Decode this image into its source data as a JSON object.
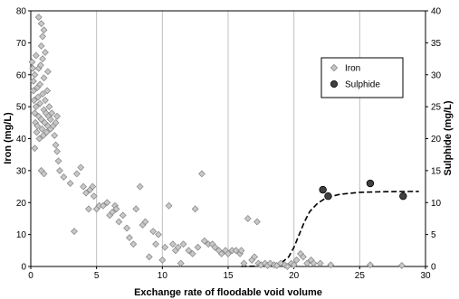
{
  "chart_data": {
    "type": "scatter",
    "title": "",
    "xlabel": "Exchange rate of floodable void volume",
    "ylabel": "Iron  (mg/L)",
    "y2label": "Sulphide (mg/L)",
    "xlim": [
      0,
      30
    ],
    "ylim": [
      0,
      80
    ],
    "y2lim": [
      0,
      40
    ],
    "x_ticks": [
      0,
      5,
      10,
      15,
      20,
      25,
      30
    ],
    "y_ticks": [
      0,
      10,
      20,
      30,
      40,
      50,
      60,
      70,
      80
    ],
    "y2_ticks": [
      0,
      5,
      10,
      15,
      20,
      25,
      30,
      35,
      40
    ],
    "grid": "vertical",
    "legend_position": "top-right",
    "series": [
      {
        "name": "Iron",
        "axis": "left",
        "marker": "diamond",
        "color": "#c8c8c8",
        "points": [
          [
            0.1,
            64
          ],
          [
            0.15,
            62
          ],
          [
            0.2,
            58
          ],
          [
            0.2,
            55
          ],
          [
            0.25,
            52
          ],
          [
            0.3,
            60
          ],
          [
            0.3,
            48
          ],
          [
            0.35,
            45
          ],
          [
            0.4,
            50
          ],
          [
            0.4,
            66
          ],
          [
            0.45,
            42
          ],
          [
            0.5,
            56
          ],
          [
            0.5,
            44
          ],
          [
            0.55,
            53
          ],
          [
            0.6,
            47
          ],
          [
            0.6,
            62
          ],
          [
            0.65,
            40
          ],
          [
            0.7,
            51
          ],
          [
            0.7,
            57
          ],
          [
            0.75,
            63
          ],
          [
            0.8,
            46
          ],
          [
            0.8,
            69
          ],
          [
            0.85,
            43
          ],
          [
            0.9,
            54
          ],
          [
            0.9,
            65
          ],
          [
            0.95,
            41
          ],
          [
            1.0,
            49
          ],
          [
            1.0,
            59
          ],
          [
            1.05,
            45
          ],
          [
            1.1,
            52
          ],
          [
            1.1,
            67
          ],
          [
            1.15,
            48
          ],
          [
            1.2,
            42
          ],
          [
            1.25,
            55
          ],
          [
            1.3,
            44
          ],
          [
            1.3,
            61
          ],
          [
            1.35,
            47
          ],
          [
            1.4,
            50
          ],
          [
            1.5,
            43
          ],
          [
            1.5,
            46
          ],
          [
            1.6,
            48
          ],
          [
            1.7,
            44
          ],
          [
            1.8,
            41
          ],
          [
            1.9,
            45
          ],
          [
            2.0,
            47
          ],
          [
            0.6,
            78
          ],
          [
            0.8,
            76
          ],
          [
            1.0,
            74
          ],
          [
            0.9,
            72
          ],
          [
            0.8,
            30
          ],
          [
            1.0,
            29
          ],
          [
            0.3,
            37
          ],
          [
            1.9,
            38
          ],
          [
            2.0,
            36
          ],
          [
            2.1,
            33
          ],
          [
            2.2,
            30
          ],
          [
            2.5,
            28
          ],
          [
            3.0,
            26
          ],
          [
            3.3,
            11
          ],
          [
            3.5,
            29
          ],
          [
            3.8,
            31
          ],
          [
            4.0,
            25
          ],
          [
            4.2,
            23
          ],
          [
            4.4,
            18
          ],
          [
            4.5,
            24
          ],
          [
            4.7,
            25
          ],
          [
            4.8,
            22
          ],
          [
            5.0,
            18
          ],
          [
            5.2,
            19
          ],
          [
            5.5,
            19
          ],
          [
            5.8,
            20
          ],
          [
            6.0,
            16
          ],
          [
            6.2,
            17
          ],
          [
            6.4,
            19
          ],
          [
            6.5,
            18
          ],
          [
            6.7,
            14
          ],
          [
            7.0,
            16
          ],
          [
            7.3,
            12
          ],
          [
            7.5,
            9
          ],
          [
            7.8,
            7
          ],
          [
            8.0,
            18
          ],
          [
            8.3,
            25
          ],
          [
            8.5,
            13
          ],
          [
            8.7,
            14
          ],
          [
            9.0,
            3
          ],
          [
            9.3,
            11
          ],
          [
            9.5,
            7
          ],
          [
            9.7,
            10
          ],
          [
            10.0,
            2
          ],
          [
            10.2,
            6
          ],
          [
            10.5,
            19
          ],
          [
            10.8,
            7
          ],
          [
            11.0,
            5
          ],
          [
            11.2,
            6
          ],
          [
            11.4,
            1
          ],
          [
            11.6,
            7
          ],
          [
            12.0,
            5
          ],
          [
            12.3,
            4
          ],
          [
            12.5,
            18
          ],
          [
            12.7,
            6
          ],
          [
            13.0,
            29
          ],
          [
            13.2,
            8
          ],
          [
            13.5,
            7
          ],
          [
            13.8,
            7
          ],
          [
            14.0,
            6
          ],
          [
            14.3,
            5
          ],
          [
            14.5,
            4
          ],
          [
            14.8,
            5
          ],
          [
            15.0,
            4
          ],
          [
            15.3,
            5
          ],
          [
            15.6,
            5
          ],
          [
            15.9,
            4
          ],
          [
            16.0,
            5
          ],
          [
            16.2,
            1
          ],
          [
            16.5,
            15
          ],
          [
            16.8,
            2
          ],
          [
            17.0,
            3
          ],
          [
            17.2,
            14
          ],
          [
            17.3,
            1
          ],
          [
            17.5,
            0.5
          ],
          [
            17.8,
            1
          ],
          [
            18.0,
            0.3
          ],
          [
            18.2,
            1
          ],
          [
            18.5,
            0.5
          ],
          [
            18.7,
            0.3
          ],
          [
            19.0,
            1
          ],
          [
            19.3,
            0.5
          ],
          [
            19.5,
            0
          ],
          [
            19.8,
            1
          ],
          [
            20.0,
            0.5
          ],
          [
            20.2,
            2
          ],
          [
            20.5,
            4
          ],
          [
            20.7,
            3
          ],
          [
            21.0,
            1
          ],
          [
            21.3,
            2
          ],
          [
            21.5,
            1
          ],
          [
            22.0,
            1
          ],
          [
            22.8,
            0.5
          ],
          [
            25.8,
            0.5
          ],
          [
            28.2,
            0.3
          ]
        ]
      },
      {
        "name": "Sulphide",
        "axis": "right",
        "marker": "circle",
        "color": "#404040",
        "points": [
          [
            22.2,
            12
          ],
          [
            22.6,
            11
          ],
          [
            25.8,
            13
          ],
          [
            28.3,
            11
          ]
        ]
      }
    ],
    "trendline": {
      "series": "Sulphide",
      "style": "dashed",
      "color": "#000000",
      "points": [
        [
          16,
          0
        ],
        [
          18,
          0.1
        ],
        [
          19,
          0.5
        ],
        [
          19.6,
          1.5
        ],
        [
          20,
          3
        ],
        [
          20.4,
          5
        ],
        [
          20.8,
          7
        ],
        [
          21.2,
          8.6
        ],
        [
          21.8,
          9.9
        ],
        [
          22.5,
          10.8
        ],
        [
          23.5,
          11.3
        ],
        [
          25,
          11.6
        ],
        [
          27,
          11.7
        ],
        [
          29.5,
          11.75
        ]
      ]
    }
  }
}
